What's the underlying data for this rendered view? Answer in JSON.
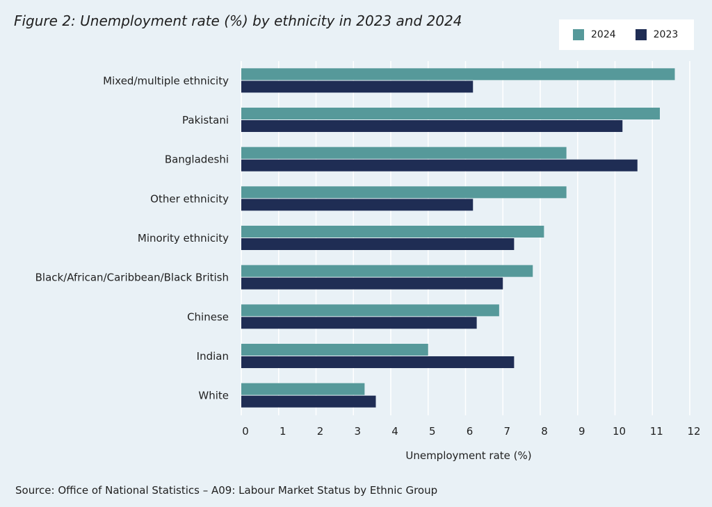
{
  "title": "Figure 2: Unemployment rate (%) by ethnicity in 2023 and 2024",
  "source": "Source: Office of National Statistics – A09: Labour Market Status by Ethnic Group",
  "chart_data": {
    "type": "bar",
    "orientation": "horizontal",
    "categories": [
      "Mixed/multiple ethnicity",
      "Pakistani",
      "Bangladeshi",
      "Other ethnicity",
      "Minority ethnicity",
      "Black/African/Caribbean/Black British",
      "Chinese",
      "Indian",
      "White"
    ],
    "series": [
      {
        "name": "2024",
        "color": "#56999a",
        "values": [
          11.6,
          11.2,
          8.7,
          8.7,
          8.1,
          7.8,
          6.9,
          5.0,
          3.3
        ]
      },
      {
        "name": "2023",
        "color": "#1f2d54",
        "values": [
          6.2,
          10.2,
          10.6,
          6.2,
          7.3,
          7.0,
          6.3,
          7.3,
          3.6
        ]
      }
    ],
    "xlabel": "Unemployment rate (%)",
    "ylabel": "",
    "xlim": [
      0,
      12
    ],
    "xticks": [
      "0",
      "1",
      "2",
      "3",
      "4",
      "5",
      "6",
      "7",
      "8",
      "9",
      "10",
      "11",
      "12"
    ],
    "grid": true,
    "legend_position": "top-right"
  }
}
